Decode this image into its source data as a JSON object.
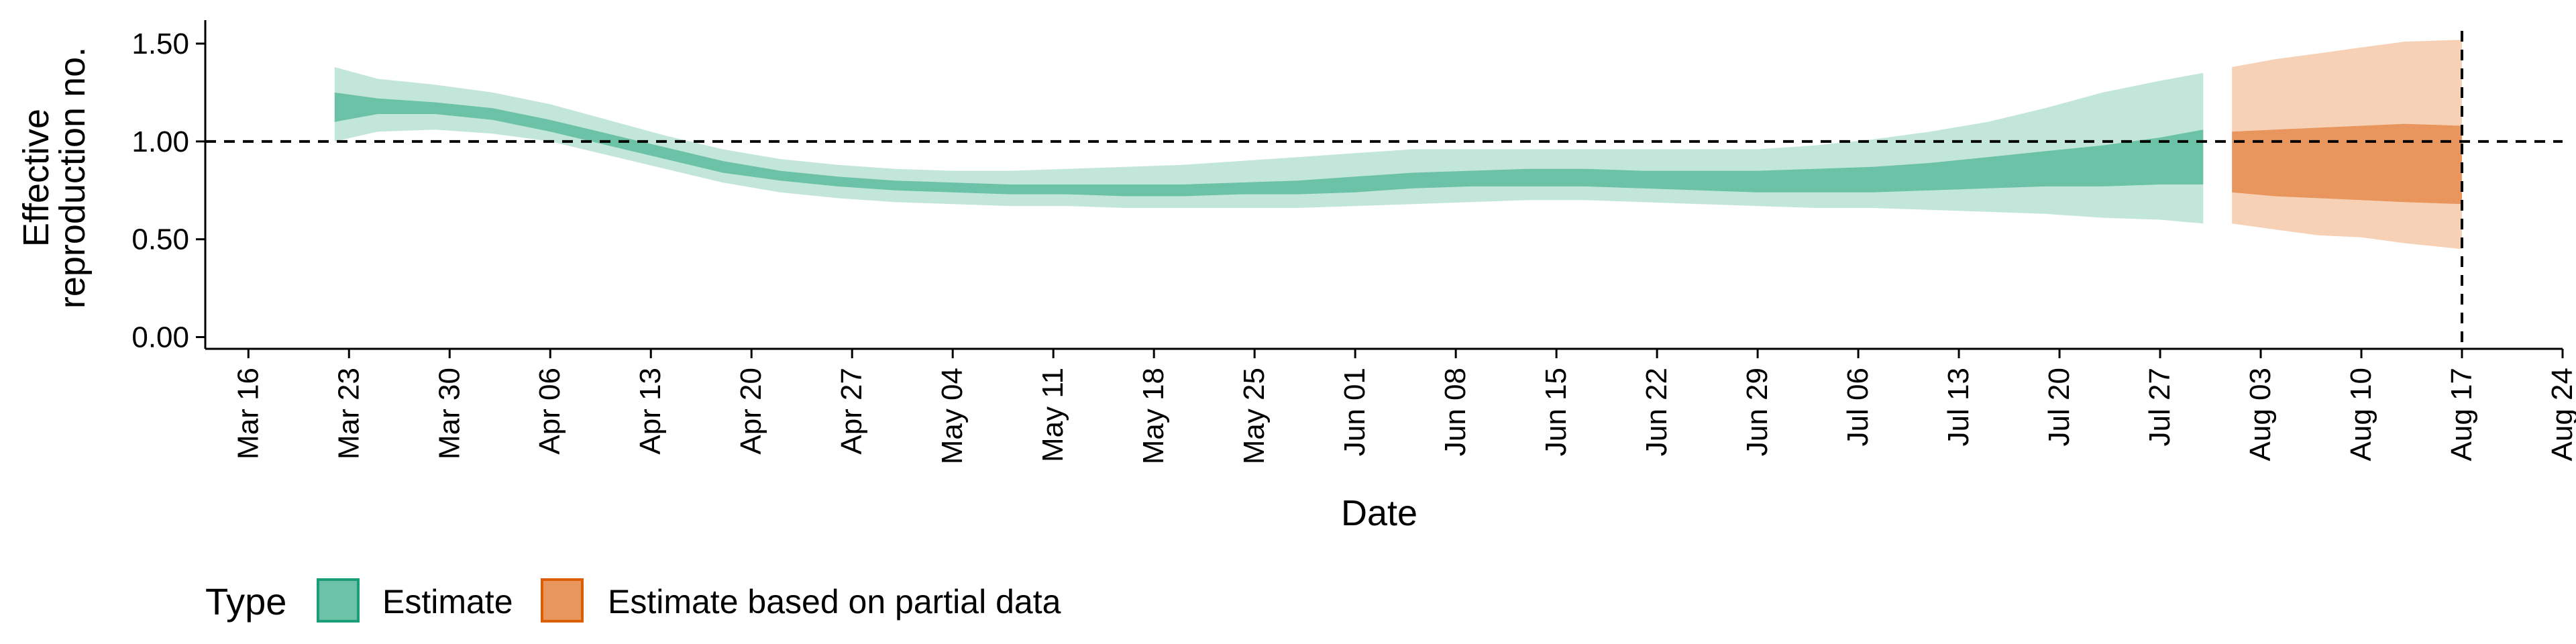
{
  "chart_data": {
    "type": "area",
    "xlabel": "Date",
    "ylabel_lines": [
      "Effective",
      "reproduction no."
    ],
    "x_tick_labels": [
      "Mar 16",
      "Mar 23",
      "Mar 30",
      "Apr 06",
      "Apr 13",
      "Apr 20",
      "Apr 27",
      "May 04",
      "May 11",
      "May 18",
      "May 25",
      "Jun 01",
      "Jun 08",
      "Jun 15",
      "Jun 22",
      "Jun 29",
      "Jul 06",
      "Jul 13",
      "Jul 20",
      "Jul 27",
      "Aug 03",
      "Aug 10",
      "Aug 17",
      "Aug 24"
    ],
    "x_ticks": [
      "2020-03-16",
      "2020-03-23",
      "2020-03-30",
      "2020-04-06",
      "2020-04-13",
      "2020-04-20",
      "2020-04-27",
      "2020-05-04",
      "2020-05-11",
      "2020-05-18",
      "2020-05-25",
      "2020-06-01",
      "2020-06-08",
      "2020-06-15",
      "2020-06-22",
      "2020-06-29",
      "2020-07-06",
      "2020-07-13",
      "2020-07-20",
      "2020-07-27",
      "2020-08-03",
      "2020-08-10",
      "2020-08-17",
      "2020-08-24"
    ],
    "y_ticks": [
      0.0,
      0.5,
      1.0,
      1.5
    ],
    "y_tick_labels": [
      "0.00",
      "0.50",
      "1.00",
      "1.50"
    ],
    "ylim": [
      -0.06,
      1.62
    ],
    "xlim": [
      "2020-03-13",
      "2020-08-24"
    ],
    "reference_line_y": 1.0,
    "vertical_line_date": "2020-08-17",
    "legend": {
      "title": "Type",
      "position": "bottom-left",
      "entries": [
        "Estimate",
        "Estimate based on partial data"
      ]
    },
    "colors": {
      "estimate_inner": "#6cc2a6",
      "estimate_outer": "#c3e6da",
      "partial_inner": "#e8965e",
      "partial_outer": "#f6d1b5",
      "legend_estimate_border": "#1b9e77",
      "legend_partial_border": "#d95f02"
    },
    "series": [
      {
        "name": "Estimate",
        "dates": [
          "2020-03-22",
          "2020-03-25",
          "2020-03-29",
          "2020-04-02",
          "2020-04-06",
          "2020-04-10",
          "2020-04-14",
          "2020-04-18",
          "2020-04-22",
          "2020-04-26",
          "2020-04-30",
          "2020-05-04",
          "2020-05-08",
          "2020-05-12",
          "2020-05-16",
          "2020-05-20",
          "2020-05-24",
          "2020-05-28",
          "2020-06-01",
          "2020-06-05",
          "2020-06-09",
          "2020-06-13",
          "2020-06-17",
          "2020-06-21",
          "2020-06-25",
          "2020-06-29",
          "2020-07-03",
          "2020-07-07",
          "2020-07-11",
          "2020-07-15",
          "2020-07-19",
          "2020-07-23",
          "2020-07-27",
          "2020-07-30"
        ],
        "lower_90": [
          1.0,
          1.05,
          1.06,
          1.04,
          1.0,
          0.93,
          0.86,
          0.79,
          0.74,
          0.71,
          0.69,
          0.68,
          0.67,
          0.67,
          0.66,
          0.66,
          0.66,
          0.66,
          0.67,
          0.68,
          0.69,
          0.7,
          0.7,
          0.69,
          0.68,
          0.67,
          0.66,
          0.66,
          0.65,
          0.64,
          0.63,
          0.61,
          0.6,
          0.58
        ],
        "lower_50": [
          1.1,
          1.14,
          1.14,
          1.11,
          1.05,
          0.98,
          0.91,
          0.84,
          0.8,
          0.77,
          0.75,
          0.74,
          0.73,
          0.73,
          0.72,
          0.72,
          0.73,
          0.73,
          0.74,
          0.76,
          0.77,
          0.77,
          0.77,
          0.76,
          0.75,
          0.74,
          0.74,
          0.74,
          0.75,
          0.76,
          0.77,
          0.77,
          0.78,
          0.78
        ],
        "upper_50": [
          1.25,
          1.22,
          1.2,
          1.17,
          1.11,
          1.04,
          0.97,
          0.9,
          0.85,
          0.82,
          0.8,
          0.79,
          0.78,
          0.78,
          0.78,
          0.78,
          0.79,
          0.8,
          0.82,
          0.84,
          0.85,
          0.86,
          0.86,
          0.85,
          0.85,
          0.85,
          0.86,
          0.87,
          0.89,
          0.92,
          0.95,
          0.98,
          1.02,
          1.06
        ],
        "upper_90": [
          1.38,
          1.32,
          1.29,
          1.25,
          1.19,
          1.11,
          1.03,
          0.96,
          0.91,
          0.88,
          0.86,
          0.85,
          0.85,
          0.86,
          0.87,
          0.88,
          0.9,
          0.92,
          0.94,
          0.96,
          0.96,
          0.96,
          0.96,
          0.96,
          0.96,
          0.96,
          0.98,
          1.01,
          1.05,
          1.1,
          1.17,
          1.25,
          1.31,
          1.35
        ]
      },
      {
        "name": "Estimate based on partial data",
        "dates": [
          "2020-08-01",
          "2020-08-04",
          "2020-08-07",
          "2020-08-10",
          "2020-08-13",
          "2020-08-17"
        ],
        "lower_90": [
          0.58,
          0.55,
          0.52,
          0.51,
          0.48,
          0.45
        ],
        "lower_50": [
          0.74,
          0.72,
          0.71,
          0.7,
          0.69,
          0.68
        ],
        "upper_50": [
          1.05,
          1.06,
          1.07,
          1.08,
          1.09,
          1.08
        ],
        "upper_90": [
          1.38,
          1.42,
          1.45,
          1.48,
          1.51,
          1.52
        ]
      }
    ]
  }
}
